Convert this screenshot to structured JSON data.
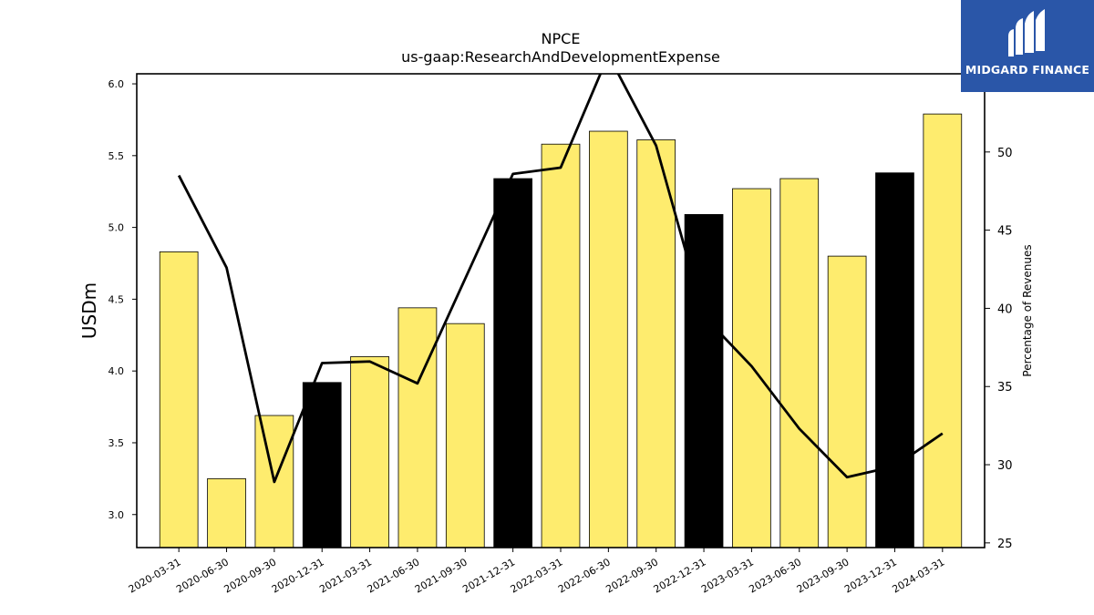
{
  "chart_data": {
    "type": "bar",
    "title": "NPCE",
    "subtitle": "us-gaap:ResearchAndDevelopmentExpense",
    "ylabel": "USDm",
    "y2label": "Percentage of Revenues",
    "categories": [
      "2020-03-31",
      "2020-06-30",
      "2020-09-30",
      "2020-12-31",
      "2021-03-31",
      "2021-06-30",
      "2021-09-30",
      "2021-12-31",
      "2022-03-31",
      "2022-06-30",
      "2022-09-30",
      "2022-12-31",
      "2023-03-31",
      "2023-06-30",
      "2023-09-30",
      "2023-12-31",
      "2024-03-31"
    ],
    "series": [
      {
        "type": "bar",
        "axis": "left",
        "values": [
          4.83,
          3.25,
          3.69,
          3.92,
          4.1,
          4.44,
          4.33,
          5.34,
          5.58,
          5.67,
          5.61,
          5.09,
          5.27,
          5.34,
          4.8,
          5.38,
          5.79
        ],
        "highlight": [
          false,
          false,
          false,
          true,
          false,
          false,
          false,
          true,
          false,
          false,
          false,
          true,
          false,
          false,
          false,
          true,
          false
        ]
      },
      {
        "type": "line",
        "axis": "right",
        "values": [
          48.5,
          42.6,
          28.9,
          36.5,
          36.6,
          35.2,
          41.9,
          48.6,
          49.0,
          56.2,
          50.4,
          39.5,
          36.3,
          32.3,
          29.2,
          29.9,
          32.0
        ]
      }
    ],
    "ylim": [
      2.77,
      6.07
    ],
    "y2lim": [
      24.7,
      55.0
    ],
    "yticks": [
      "3.0",
      "3.5",
      "4.0",
      "4.5",
      "5.0",
      "5.5",
      "6.0"
    ],
    "y2ticks": [
      "25",
      "30",
      "35",
      "40",
      "45",
      "50"
    ],
    "colors": {
      "bar": "#feec6e",
      "bar_highlight": "#000000",
      "line": "#000000"
    },
    "grid": false,
    "legend": "none"
  },
  "logo": {
    "text": "MIDGARD FINANCE",
    "background": "#2a56a8"
  }
}
